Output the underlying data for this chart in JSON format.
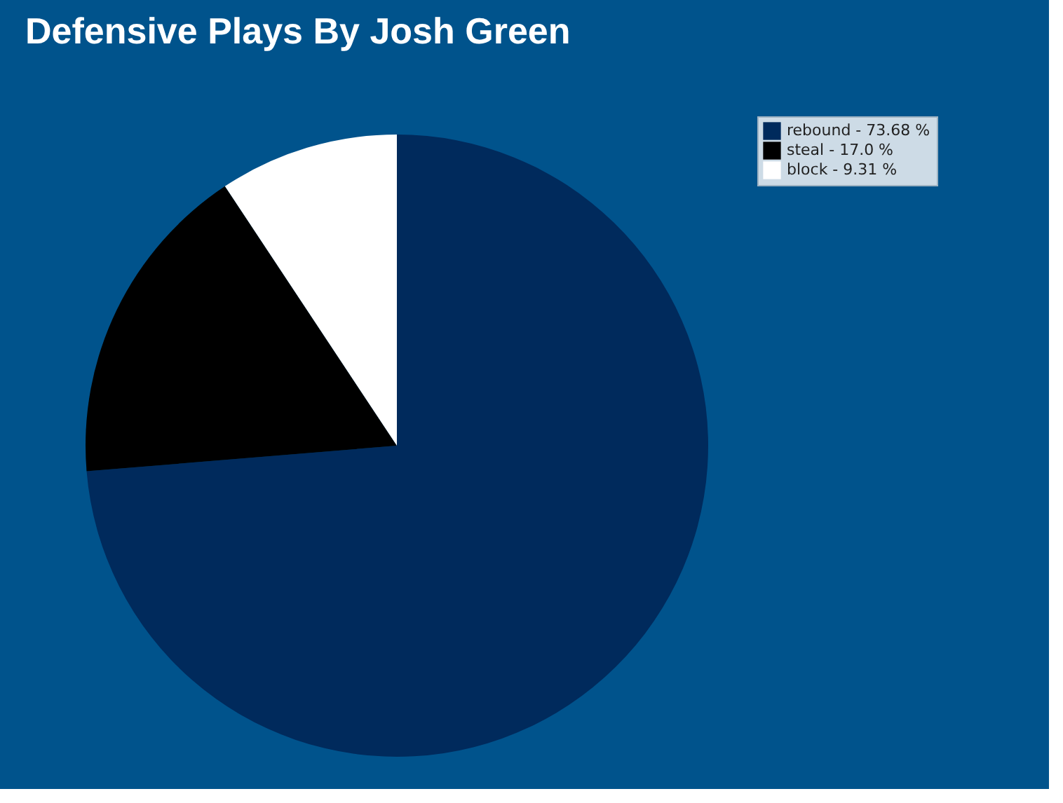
{
  "chart_data": {
    "type": "pie",
    "title": "Defensive Plays By Josh Green",
    "categories": [
      "rebound - 73.68 %",
      "steal - 17.0 %",
      "block - 9.31 %"
    ],
    "values": [
      73.68,
      17.0,
      9.31
    ],
    "colors": [
      "#002a5c",
      "#000000",
      "#ffffff"
    ],
    "legend": "top right"
  }
}
